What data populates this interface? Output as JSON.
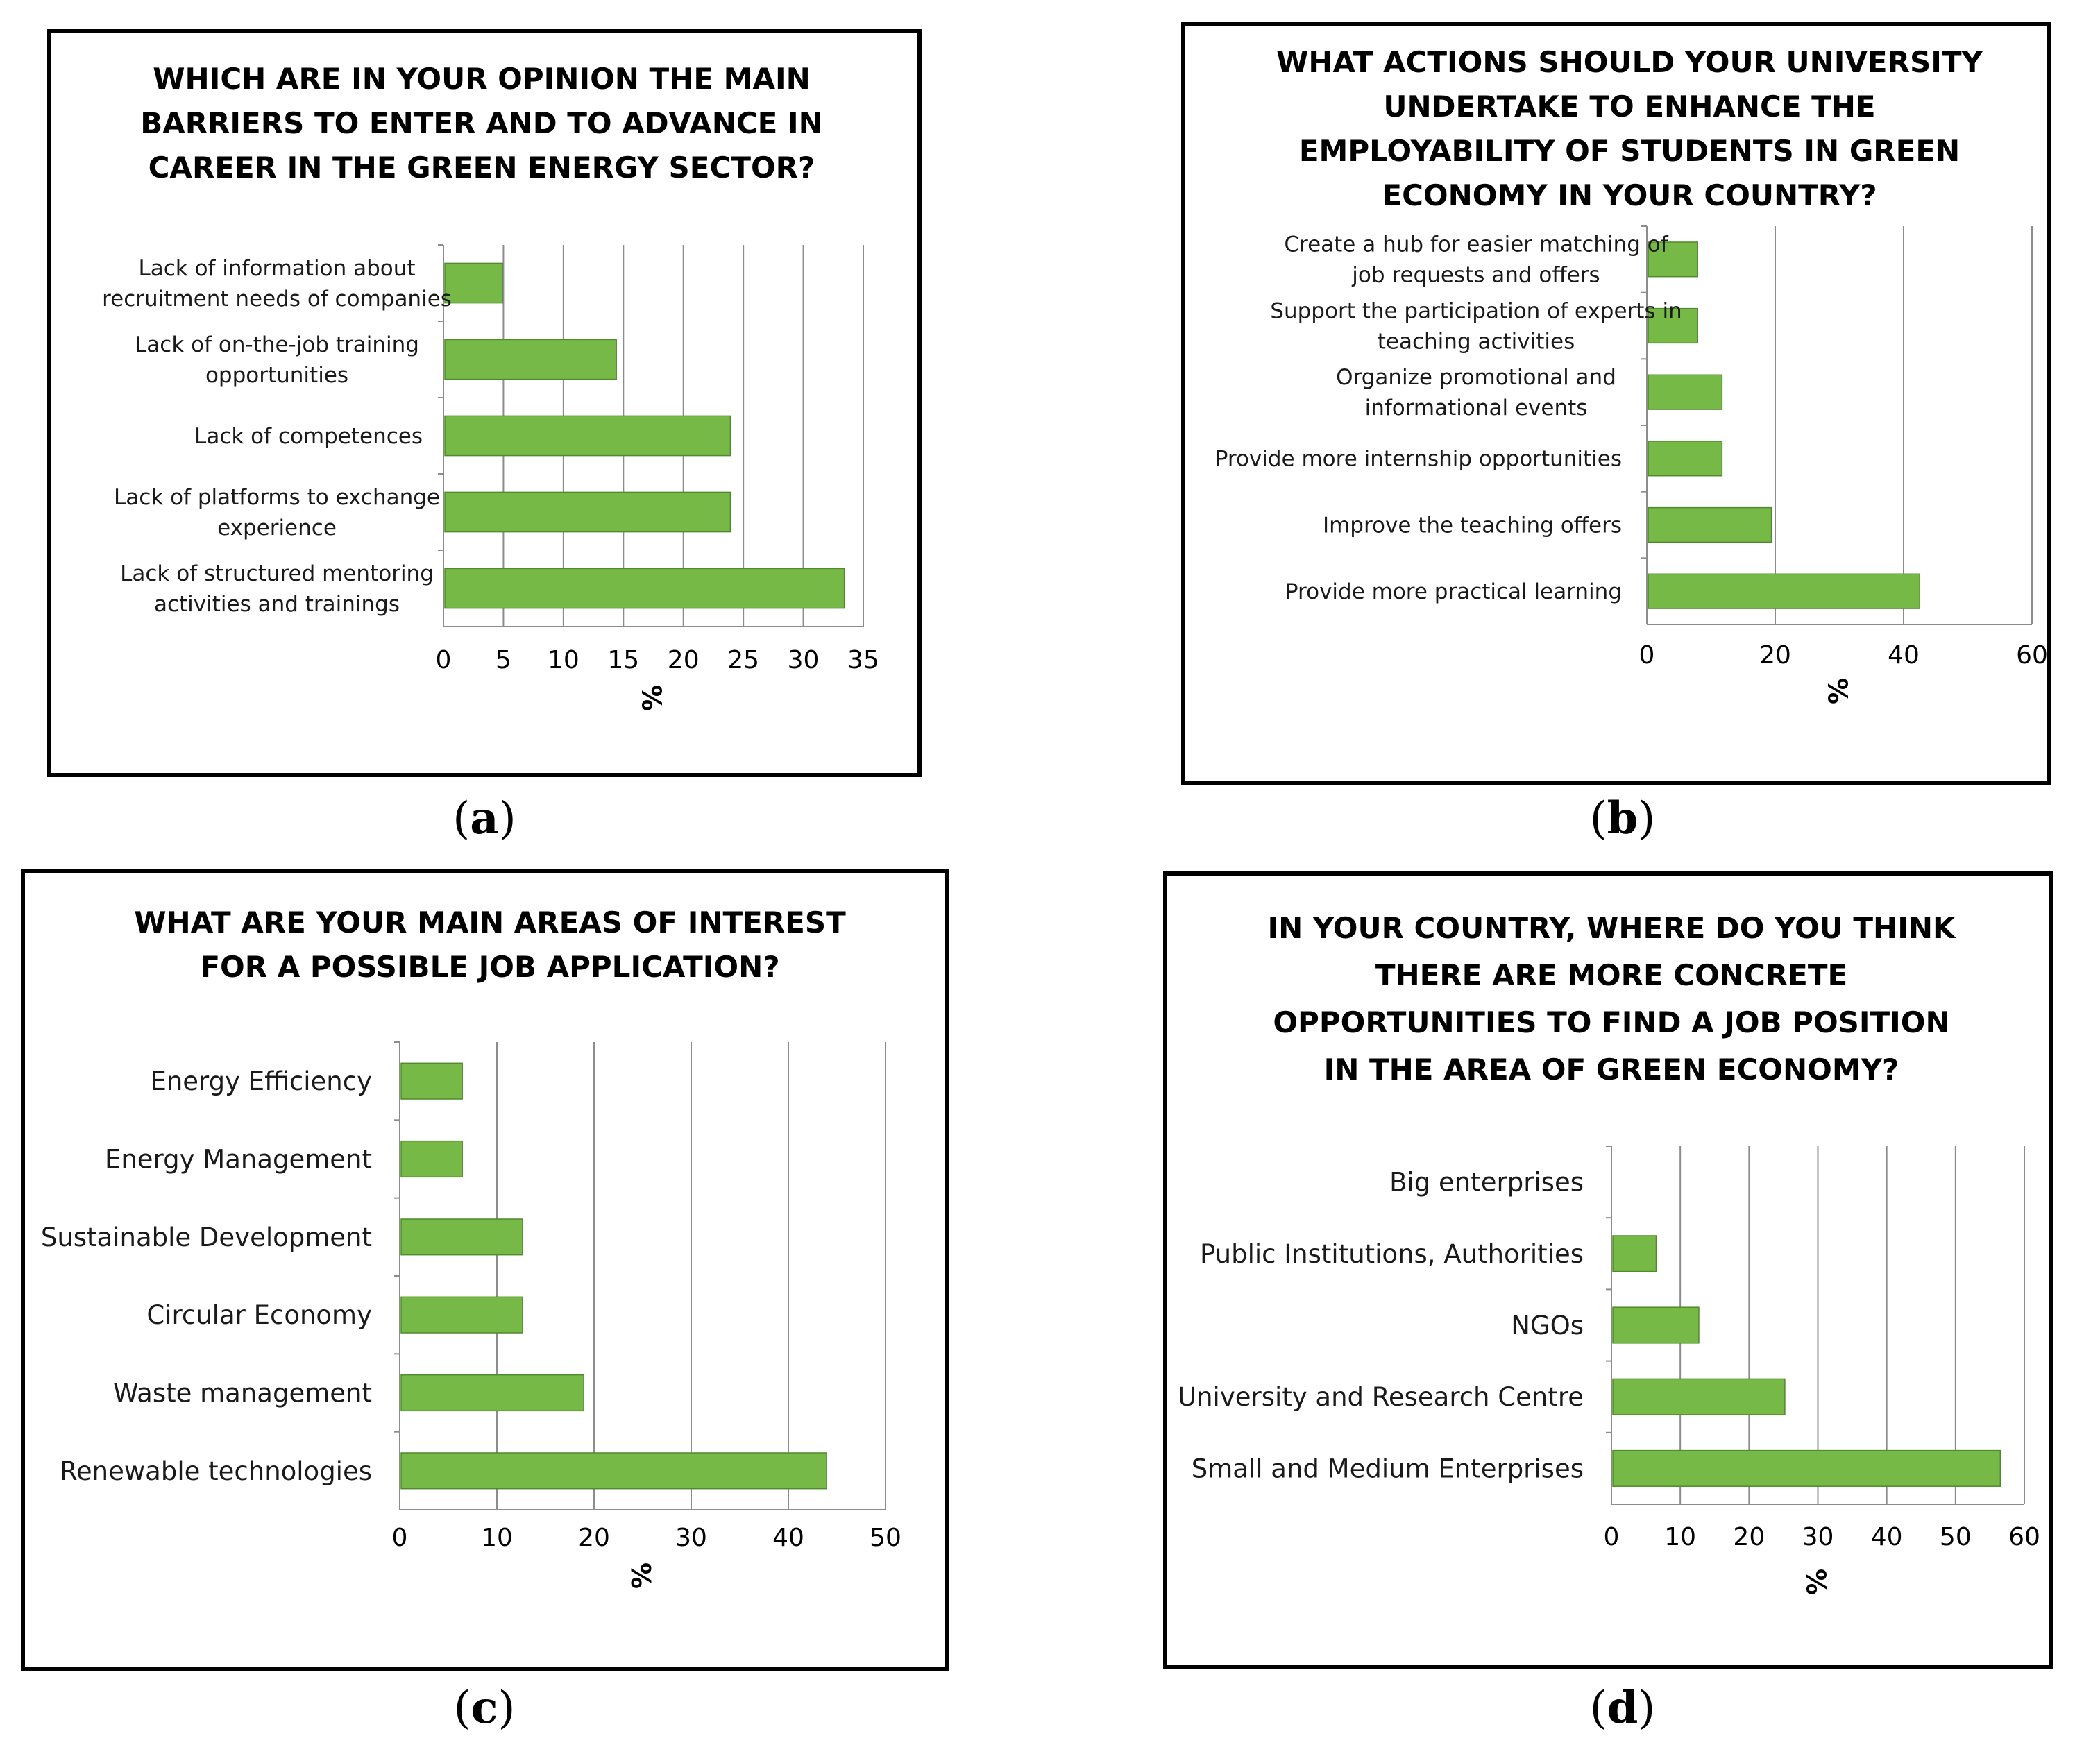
{
  "captions": {
    "a": "a",
    "b": "b",
    "c": "c",
    "d": "d"
  },
  "chart_data": [
    {
      "id": "a",
      "type": "bar",
      "orientation": "horizontal",
      "title": [
        "WHICH ARE IN YOUR OPINION THE MAIN",
        "BARRIERS TO ENTER AND TO ADVANCE IN",
        "CAREER IN THE GREEN ENERGY SECTOR?"
      ],
      "categories": [
        [
          "Lack of information about",
          "recruitment needs of companies"
        ],
        [
          "Lack of on-the-job training",
          "opportunities"
        ],
        [
          "Lack of competences"
        ],
        [
          "Lack of platforms to exchange",
          "experience"
        ],
        [
          "Lack of structured mentoring",
          "activities and trainings"
        ]
      ],
      "values": [
        4.8,
        14.3,
        23.8,
        23.8,
        33.3
      ],
      "xlabel": "%",
      "xlim": [
        0,
        35
      ],
      "ticks": [
        "0",
        "5",
        "10",
        "15",
        "20",
        "25",
        "30",
        "35"
      ],
      "grid": true,
      "color": "#76b947"
    },
    {
      "id": "b",
      "type": "bar",
      "orientation": "horizontal",
      "title": [
        "WHAT ACTIONS SHOULD YOUR UNIVERSITY",
        "UNDERTAKE TO ENHANCE THE",
        "EMPLOYABILITY OF STUDENTS IN GREEN",
        "ECONOMY IN YOUR COUNTRY?"
      ],
      "categories": [
        [
          "Create a hub for easier matching of",
          "job requests and offers"
        ],
        [
          "Support the participation of experts in",
          "teaching activities"
        ],
        [
          "Organize promotional and",
          "informational events"
        ],
        [
          "Provide more internship opportunities"
        ],
        [
          "Improve the teaching offers"
        ],
        [
          "Provide more practical learning"
        ]
      ],
      "values": [
        7.7,
        7.7,
        11.5,
        11.5,
        19.2,
        42.3
      ],
      "xlabel": "%",
      "xlim": [
        0,
        60
      ],
      "ticks": [
        "0",
        "20",
        "40",
        "60"
      ],
      "grid": true,
      "color": "#76b947"
    },
    {
      "id": "c",
      "type": "bar",
      "orientation": "horizontal",
      "title": [
        "WHAT ARE YOUR MAIN AREAS OF INTEREST",
        "FOR A POSSIBLE JOB APPLICATION?"
      ],
      "categories": [
        [
          "Energy Efficiency"
        ],
        [
          "Energy Management"
        ],
        [
          "Sustainable Development"
        ],
        [
          "Circular Economy"
        ],
        [
          "Waste management"
        ],
        [
          "Renewable technologies"
        ]
      ],
      "values": [
        6.3,
        6.3,
        12.5,
        12.5,
        18.8,
        43.8
      ],
      "xlabel": "%",
      "xlim": [
        0,
        50
      ],
      "ticks": [
        "0",
        "10",
        "20",
        "30",
        "40",
        "50"
      ],
      "grid": true,
      "color": "#76b947"
    },
    {
      "id": "d",
      "type": "bar",
      "orientation": "horizontal",
      "title": [
        "IN YOUR COUNTRY, WHERE DO YOU THINK",
        "THERE ARE MORE CONCRETE",
        "OPPORTUNITIES TO FIND A JOB POSITION",
        "IN THE AREA OF GREEN ECONOMY?"
      ],
      "categories": [
        [
          "Big enterprises"
        ],
        [
          "Public Institutions, Authorities"
        ],
        [
          "NGOs"
        ],
        [
          "University and Research Centre"
        ],
        [
          "Small and Medium Enterprises"
        ]
      ],
      "values": [
        0,
        6.3,
        12.5,
        25,
        56.3
      ],
      "xlabel": "%",
      "xlim": [
        0,
        60
      ],
      "ticks": [
        "0",
        "10",
        "20",
        "30",
        "40",
        "50",
        "60"
      ],
      "grid": true,
      "color": "#76b947"
    }
  ]
}
